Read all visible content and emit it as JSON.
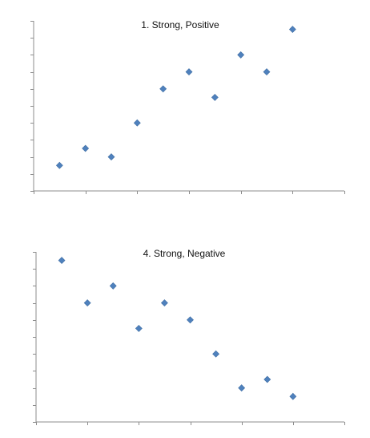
{
  "chart_data": [
    {
      "type": "scatter",
      "title": "1. Strong, Positive",
      "xlabel": "",
      "ylabel": "",
      "xlim": [
        0,
        12
      ],
      "ylim": [
        0,
        10
      ],
      "x_tick_interval": 2,
      "y_tick_interval": 1,
      "grid": false,
      "legend": "none",
      "marker": "diamond",
      "series": [
        {
          "color": "#4f81bd",
          "points": [
            {
              "x": 1,
              "y": 1.5
            },
            {
              "x": 2,
              "y": 2.5
            },
            {
              "x": 3,
              "y": 2
            },
            {
              "x": 4,
              "y": 4
            },
            {
              "x": 5,
              "y": 6
            },
            {
              "x": 6,
              "y": 7
            },
            {
              "x": 7,
              "y": 5.5
            },
            {
              "x": 8,
              "y": 8
            },
            {
              "x": 9,
              "y": 7
            },
            {
              "x": 10,
              "y": 9.5
            }
          ]
        }
      ]
    },
    {
      "type": "scatter",
      "title": "4. Strong, Negative",
      "xlabel": "",
      "ylabel": "",
      "xlim": [
        0,
        12
      ],
      "ylim": [
        0,
        10
      ],
      "x_tick_interval": 2,
      "y_tick_interval": 1,
      "grid": false,
      "legend": "none",
      "marker": "diamond",
      "series": [
        {
          "color": "#4f81bd",
          "points": [
            {
              "x": 1,
              "y": 9.5
            },
            {
              "x": 2,
              "y": 7
            },
            {
              "x": 3,
              "y": 8
            },
            {
              "x": 4,
              "y": 5.5
            },
            {
              "x": 5,
              "y": 7
            },
            {
              "x": 6,
              "y": 6
            },
            {
              "x": 7,
              "y": 4
            },
            {
              "x": 8,
              "y": 2
            },
            {
              "x": 9,
              "y": 2.5
            },
            {
              "x": 10,
              "y": 1.5
            }
          ]
        }
      ]
    }
  ]
}
